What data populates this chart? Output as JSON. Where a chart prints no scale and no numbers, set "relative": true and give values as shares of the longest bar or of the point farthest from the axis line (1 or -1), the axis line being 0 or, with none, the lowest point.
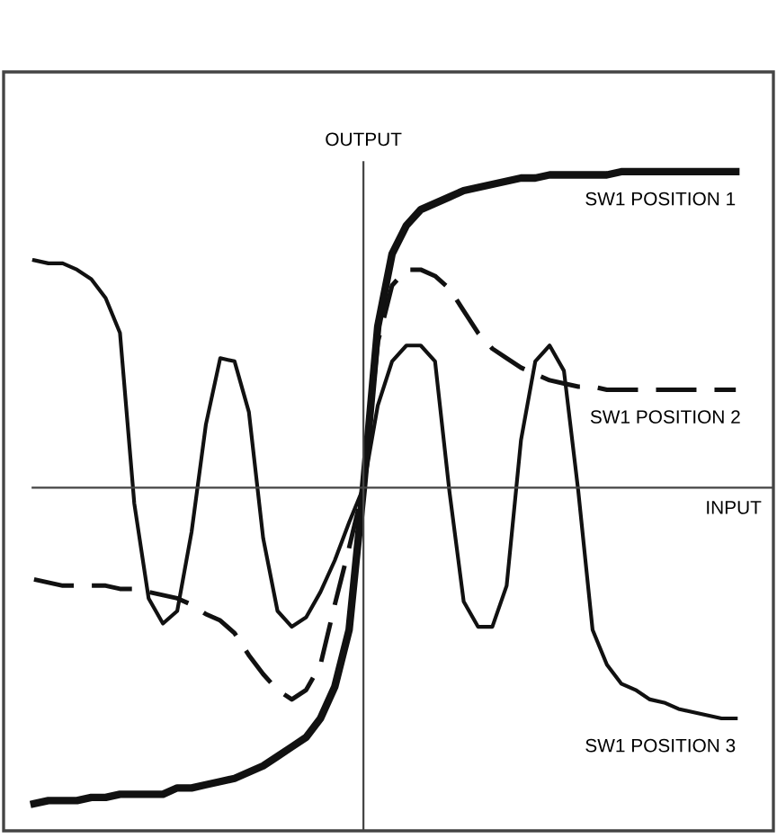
{
  "chart_data": {
    "type": "line",
    "relative": true,
    "xlabel": "INPUT",
    "ylabel": "OUTPUT",
    "legend": false,
    "categories": [
      null,
      null,
      null,
      null,
      null,
      null,
      null,
      null,
      null,
      null,
      null,
      null,
      null,
      null,
      null,
      null,
      null,
      null,
      null,
      null,
      null,
      null,
      null,
      null,
      null,
      null,
      null,
      null,
      null,
      null,
      null,
      null,
      null,
      null,
      null,
      null,
      null,
      null,
      null,
      null,
      null,
      null,
      null,
      null,
      null,
      null,
      null,
      null,
      null,
      null
    ],
    "series": [
      {
        "name": "SW1 POSITION 1",
        "color": "#111111",
        "line_style": "solid",
        "values": [
          -1.0,
          -0.99,
          -0.99,
          -0.99,
          -0.98,
          -0.98,
          -0.97,
          -0.97,
          -0.97,
          -0.97,
          -0.95,
          -0.95,
          -0.94,
          -0.93,
          -0.92,
          -0.9,
          -0.88,
          -0.85,
          -0.82,
          -0.79,
          -0.73,
          -0.63,
          -0.45,
          0,
          0.51,
          0.74,
          0.83,
          0.88,
          0.9,
          0.92,
          0.94,
          0.95,
          0.96,
          0.97,
          0.98,
          0.98,
          0.99,
          0.99,
          0.99,
          0.99,
          0.99,
          1.0,
          1.0,
          1.0,
          1.0,
          1.0,
          1.0,
          1.0,
          1.0,
          1.0
        ]
      },
      {
        "name": "SW1 POSITION 2",
        "color": "#111111",
        "line_style": "dashed",
        "values": [
          -0.29,
          -0.3,
          -0.31,
          -0.31,
          -0.31,
          -0.31,
          -0.32,
          -0.32,
          -0.33,
          -0.34,
          -0.35,
          -0.37,
          -0.4,
          -0.42,
          -0.46,
          -0.53,
          -0.59,
          -0.64,
          -0.67,
          -0.64,
          -0.56,
          -0.37,
          -0.19,
          0,
          0.46,
          0.64,
          0.69,
          0.69,
          0.67,
          0.63,
          0.56,
          0.49,
          0.44,
          0.41,
          0.38,
          0.36,
          0.34,
          0.33,
          0.32,
          0.32,
          0.31,
          0.31,
          0.31,
          0.31,
          0.31,
          0.31,
          0.31,
          0.31,
          0.31,
          0.31
        ]
      },
      {
        "name": "SW1 POSITION 3",
        "color": "#111111",
        "line_style": "solid",
        "values": [
          0.72,
          0.71,
          0.71,
          0.69,
          0.66,
          0.6,
          0.49,
          -0.05,
          -0.35,
          -0.43,
          -0.39,
          -0.14,
          0.2,
          0.41,
          0.4,
          0.24,
          -0.16,
          -0.39,
          -0.44,
          -0.41,
          -0.33,
          -0.23,
          -0.11,
          0,
          0.26,
          0.4,
          0.45,
          0.45,
          0.4,
          -0.01,
          -0.36,
          -0.44,
          -0.44,
          -0.31,
          0.15,
          0.4,
          0.45,
          0.37,
          -0.01,
          -0.45,
          -0.56,
          -0.62,
          -0.64,
          -0.67,
          -0.68,
          -0.7,
          -0.71,
          -0.72,
          -0.73,
          -0.73
        ]
      }
    ]
  }
}
